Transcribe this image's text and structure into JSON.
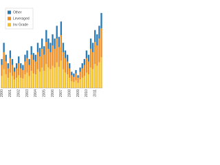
{
  "chart_data": {
    "type": "stacked_bar",
    "categories": [
      "2000",
      null,
      null,
      null,
      "2001",
      null,
      null,
      null,
      "2002",
      null,
      null,
      null,
      "2003",
      null,
      null,
      null,
      "2004",
      null,
      null,
      null,
      "2005",
      null,
      null,
      null,
      "2006",
      null,
      null,
      null,
      "2007",
      null,
      null,
      null,
      "2008",
      null,
      null,
      null,
      "2009",
      null,
      null,
      null,
      "2010",
      null,
      null,
      null,
      "2011",
      null,
      null,
      null
    ],
    "series": [
      {
        "name": "Inv Grade",
        "color": "#f5bf2a",
        "values": [
          14,
          22,
          16,
          12,
          18,
          14,
          10,
          12,
          15,
          12,
          11,
          16,
          18,
          14,
          20,
          17,
          16,
          22,
          19,
          24,
          20,
          28,
          24,
          22,
          26,
          24,
          30,
          25,
          32,
          22,
          18,
          16,
          12,
          8,
          7,
          9,
          6,
          10,
          12,
          14,
          18,
          16,
          24,
          22,
          28,
          26,
          30,
          36
        ]
      },
      {
        "name": "Leveraged",
        "color": "#f28a1c",
        "values": [
          13,
          20,
          15,
          11,
          17,
          13,
          9,
          11,
          14,
          11,
          10,
          15,
          17,
          13,
          19,
          16,
          15,
          20,
          18,
          22,
          19,
          26,
          22,
          20,
          24,
          22,
          28,
          23,
          30,
          20,
          17,
          15,
          11,
          7,
          6,
          8,
          6,
          9,
          11,
          13,
          17,
          15,
          22,
          20,
          26,
          24,
          28,
          34
        ]
      },
      {
        "name": "Other",
        "color": "#2a7ab5",
        "values": [
          7,
          11,
          8,
          6,
          9,
          7,
          5,
          6,
          8,
          6,
          6,
          8,
          9,
          7,
          10,
          8,
          8,
          11,
          10,
          12,
          10,
          14,
          12,
          11,
          13,
          12,
          15,
          12,
          16,
          11,
          9,
          8,
          6,
          4,
          4,
          4,
          3,
          5,
          6,
          7,
          9,
          8,
          12,
          11,
          14,
          13,
          15,
          18
        ]
      }
    ],
    "ylim": [
      0,
      100
    ],
    "legend": "upper left"
  }
}
